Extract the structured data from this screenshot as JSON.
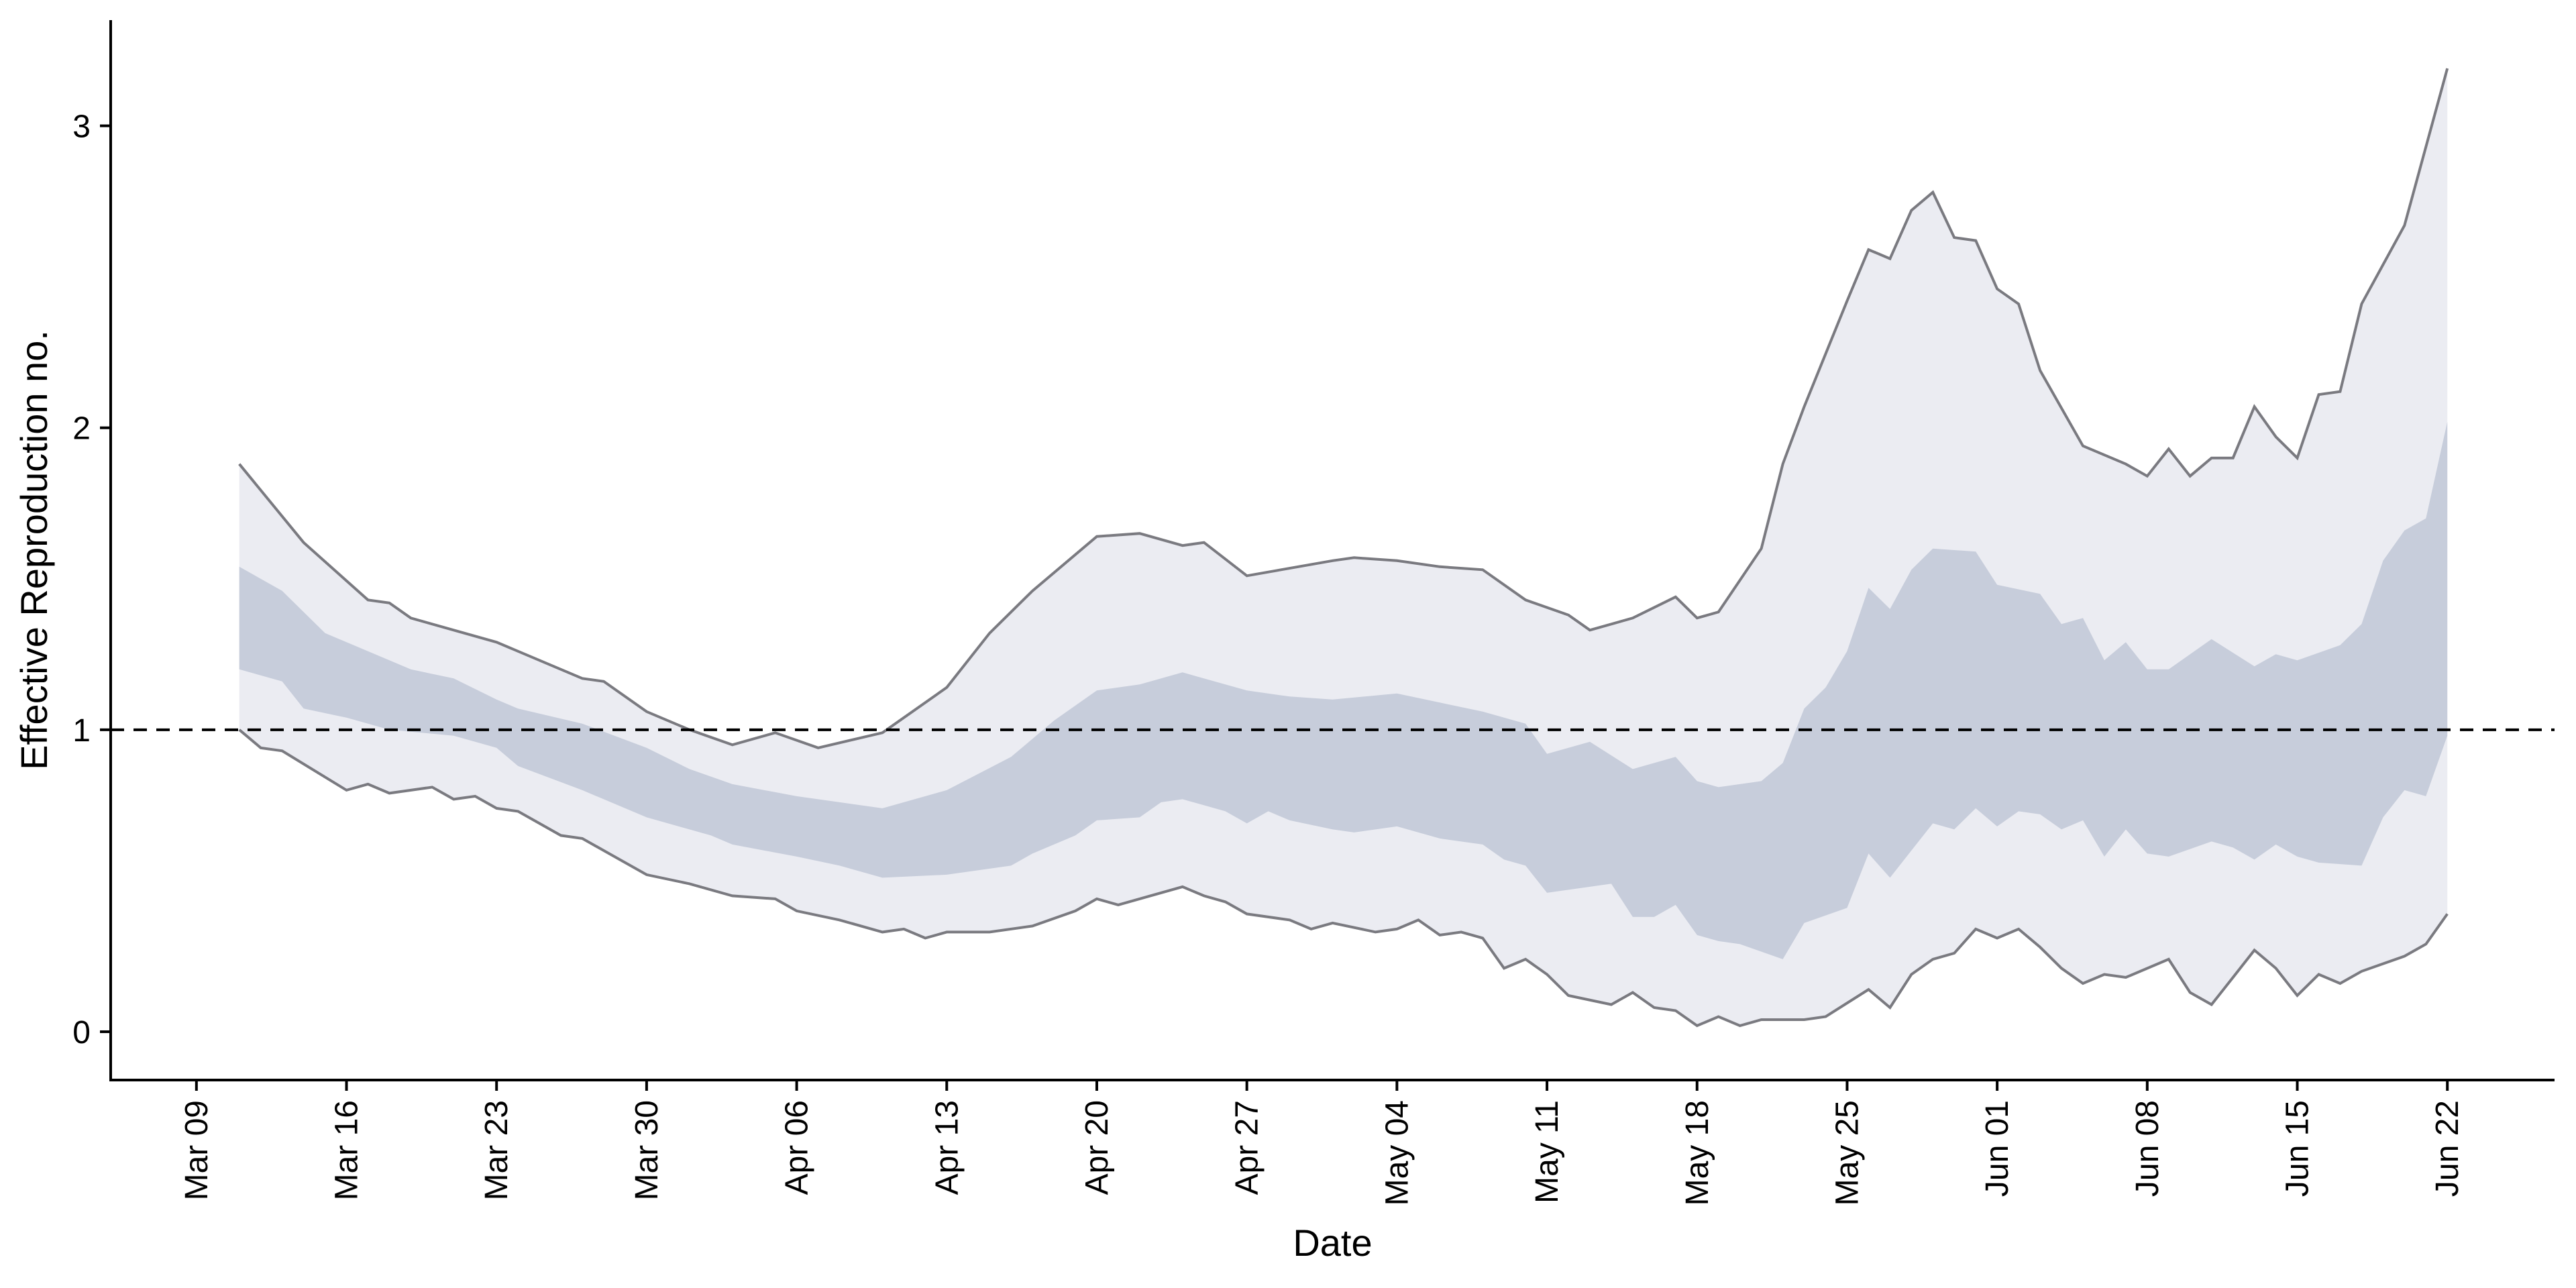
{
  "chart_data": {
    "type": "area",
    "title": "",
    "xlabel": "Date",
    "ylabel": "Effective Reproduction no.",
    "x_start": "2020-03-11",
    "x_end": "2020-06-22",
    "x_ticks": [
      "Mar 09",
      "Mar 16",
      "Mar 23",
      "Mar 30",
      "Apr 06",
      "Apr 13",
      "Apr 20",
      "Apr 27",
      "May 04",
      "May 11",
      "May 18",
      "May 25",
      "Jun 01",
      "Jun 08",
      "Jun 15",
      "Jun 22"
    ],
    "y_ticks": [
      0,
      1,
      2,
      3
    ],
    "ylim": [
      -0.16,
      3.35
    ],
    "xlim": [
      "2020-03-05",
      "2020-06-27"
    ],
    "reference_line": 1,
    "grid": false,
    "colors": {
      "outer_band": "#ebecf2",
      "inner_band": "#c7cddb",
      "bound_line": "#7a7a80"
    },
    "series": [
      {
        "role": "outer_upper",
        "points": [
          [
            "2020-03-11",
            1.88
          ],
          [
            "2020-03-14",
            1.62
          ],
          [
            "2020-03-17",
            1.43
          ],
          [
            "2020-03-18",
            1.42
          ],
          [
            "2020-03-19",
            1.37
          ],
          [
            "2020-03-23",
            1.29
          ],
          [
            "2020-03-27",
            1.17
          ],
          [
            "2020-03-28",
            1.16
          ],
          [
            "2020-03-30",
            1.06
          ],
          [
            "2020-04-01",
            1.0
          ],
          [
            "2020-04-03",
            0.95
          ],
          [
            "2020-04-05",
            0.99
          ],
          [
            "2020-04-07",
            0.94
          ],
          [
            "2020-04-10",
            0.99
          ],
          [
            "2020-04-13",
            1.14
          ],
          [
            "2020-04-15",
            1.32
          ],
          [
            "2020-04-17",
            1.46
          ],
          [
            "2020-04-20",
            1.64
          ],
          [
            "2020-04-22",
            1.65
          ],
          [
            "2020-04-24",
            1.61
          ],
          [
            "2020-04-25",
            1.62
          ],
          [
            "2020-04-27",
            1.51
          ],
          [
            "2020-05-01",
            1.56
          ],
          [
            "2020-05-02",
            1.57
          ],
          [
            "2020-05-04",
            1.56
          ],
          [
            "2020-05-06",
            1.54
          ],
          [
            "2020-05-08",
            1.53
          ],
          [
            "2020-05-10",
            1.43
          ],
          [
            "2020-05-12",
            1.38
          ],
          [
            "2020-05-13",
            1.33
          ],
          [
            "2020-05-15",
            1.37
          ],
          [
            "2020-05-17",
            1.44
          ],
          [
            "2020-05-18",
            1.37
          ],
          [
            "2020-05-19",
            1.39
          ],
          [
            "2020-05-21",
            1.6
          ],
          [
            "2020-05-22",
            1.88
          ],
          [
            "2020-05-23",
            2.07
          ],
          [
            "2020-05-25",
            2.42
          ],
          [
            "2020-05-26",
            2.59
          ],
          [
            "2020-05-27",
            2.56
          ],
          [
            "2020-05-28",
            2.72
          ],
          [
            "2020-05-29",
            2.78
          ],
          [
            "2020-05-30",
            2.63
          ],
          [
            "2020-05-31",
            2.62
          ],
          [
            "2020-06-01",
            2.46
          ],
          [
            "2020-06-02",
            2.41
          ],
          [
            "2020-06-03",
            2.19
          ],
          [
            "2020-06-05",
            1.94
          ],
          [
            "2020-06-07",
            1.88
          ],
          [
            "2020-06-08",
            1.84
          ],
          [
            "2020-06-09",
            1.93
          ],
          [
            "2020-06-10",
            1.84
          ],
          [
            "2020-06-11",
            1.9
          ],
          [
            "2020-06-12",
            1.9
          ],
          [
            "2020-06-13",
            2.07
          ],
          [
            "2020-06-14",
            1.97
          ],
          [
            "2020-06-15",
            1.9
          ],
          [
            "2020-06-16",
            2.11
          ],
          [
            "2020-06-17",
            2.12
          ],
          [
            "2020-06-18",
            2.41
          ],
          [
            "2020-06-20",
            2.67
          ],
          [
            "2020-06-22",
            3.19
          ]
        ]
      },
      {
        "role": "inner_upper",
        "points": [
          [
            "2020-03-11",
            1.54
          ],
          [
            "2020-03-13",
            1.46
          ],
          [
            "2020-03-15",
            1.32
          ],
          [
            "2020-03-17",
            1.26
          ],
          [
            "2020-03-19",
            1.2
          ],
          [
            "2020-03-21",
            1.17
          ],
          [
            "2020-03-23",
            1.1
          ],
          [
            "2020-03-24",
            1.07
          ],
          [
            "2020-03-27",
            1.02
          ],
          [
            "2020-03-30",
            0.94
          ],
          [
            "2020-04-01",
            0.87
          ],
          [
            "2020-04-03",
            0.82
          ],
          [
            "2020-04-06",
            0.78
          ],
          [
            "2020-04-08",
            0.76
          ],
          [
            "2020-04-10",
            0.74
          ],
          [
            "2020-04-13",
            0.8
          ],
          [
            "2020-04-16",
            0.91
          ],
          [
            "2020-04-18",
            1.03
          ],
          [
            "2020-04-20",
            1.13
          ],
          [
            "2020-04-22",
            1.15
          ],
          [
            "2020-04-24",
            1.19
          ],
          [
            "2020-04-27",
            1.13
          ],
          [
            "2020-04-29",
            1.11
          ],
          [
            "2020-05-01",
            1.1
          ],
          [
            "2020-05-04",
            1.12
          ],
          [
            "2020-05-06",
            1.09
          ],
          [
            "2020-05-08",
            1.06
          ],
          [
            "2020-05-10",
            1.02
          ],
          [
            "2020-05-11",
            0.92
          ],
          [
            "2020-05-13",
            0.96
          ],
          [
            "2020-05-15",
            0.87
          ],
          [
            "2020-05-17",
            0.91
          ],
          [
            "2020-05-18",
            0.83
          ],
          [
            "2020-05-19",
            0.81
          ],
          [
            "2020-05-21",
            0.83
          ],
          [
            "2020-05-22",
            0.89
          ],
          [
            "2020-05-23",
            1.07
          ],
          [
            "2020-05-24",
            1.14
          ],
          [
            "2020-05-25",
            1.26
          ],
          [
            "2020-05-26",
            1.47
          ],
          [
            "2020-05-27",
            1.4
          ],
          [
            "2020-05-28",
            1.53
          ],
          [
            "2020-05-29",
            1.6
          ],
          [
            "2020-05-31",
            1.59
          ],
          [
            "2020-06-01",
            1.48
          ],
          [
            "2020-06-03",
            1.45
          ],
          [
            "2020-06-04",
            1.35
          ],
          [
            "2020-06-05",
            1.37
          ],
          [
            "2020-06-06",
            1.23
          ],
          [
            "2020-06-07",
            1.29
          ],
          [
            "2020-06-08",
            1.2
          ],
          [
            "2020-06-09",
            1.2
          ],
          [
            "2020-06-11",
            1.3
          ],
          [
            "2020-06-13",
            1.21
          ],
          [
            "2020-06-14",
            1.25
          ],
          [
            "2020-06-15",
            1.23
          ],
          [
            "2020-06-17",
            1.28
          ],
          [
            "2020-06-18",
            1.35
          ],
          [
            "2020-06-19",
            1.56
          ],
          [
            "2020-06-20",
            1.66
          ],
          [
            "2020-06-21",
            1.7
          ],
          [
            "2020-06-22",
            2.02
          ]
        ]
      },
      {
        "role": "inner_lower",
        "points": [
          [
            "2020-03-11",
            1.2
          ],
          [
            "2020-03-13",
            1.16
          ],
          [
            "2020-03-14",
            1.07
          ],
          [
            "2020-03-16",
            1.04
          ],
          [
            "2020-03-18",
            1.0
          ],
          [
            "2020-03-21",
            0.98
          ],
          [
            "2020-03-23",
            0.94
          ],
          [
            "2020-03-24",
            0.88
          ],
          [
            "2020-03-27",
            0.8
          ],
          [
            "2020-03-30",
            0.71
          ],
          [
            "2020-04-01",
            0.67
          ],
          [
            "2020-04-02",
            0.65
          ],
          [
            "2020-04-03",
            0.62
          ],
          [
            "2020-04-06",
            0.58
          ],
          [
            "2020-04-08",
            0.55
          ],
          [
            "2020-04-10",
            0.51
          ],
          [
            "2020-04-13",
            0.52
          ],
          [
            "2020-04-16",
            0.55
          ],
          [
            "2020-04-17",
            0.59
          ],
          [
            "2020-04-19",
            0.65
          ],
          [
            "2020-04-20",
            0.7
          ],
          [
            "2020-04-22",
            0.71
          ],
          [
            "2020-04-23",
            0.76
          ],
          [
            "2020-04-24",
            0.77
          ],
          [
            "2020-04-26",
            0.73
          ],
          [
            "2020-04-27",
            0.69
          ],
          [
            "2020-04-28",
            0.73
          ],
          [
            "2020-04-29",
            0.7
          ],
          [
            "2020-05-01",
            0.67
          ],
          [
            "2020-05-02",
            0.66
          ],
          [
            "2020-05-04",
            0.68
          ],
          [
            "2020-05-06",
            0.64
          ],
          [
            "2020-05-08",
            0.62
          ],
          [
            "2020-05-09",
            0.57
          ],
          [
            "2020-05-10",
            0.55
          ],
          [
            "2020-05-11",
            0.46
          ],
          [
            "2020-05-13",
            0.48
          ],
          [
            "2020-05-14",
            0.49
          ],
          [
            "2020-05-15",
            0.38
          ],
          [
            "2020-05-16",
            0.38
          ],
          [
            "2020-05-17",
            0.42
          ],
          [
            "2020-05-18",
            0.32
          ],
          [
            "2020-05-19",
            0.3
          ],
          [
            "2020-05-20",
            0.29
          ],
          [
            "2020-05-22",
            0.24
          ],
          [
            "2020-05-23",
            0.36
          ],
          [
            "2020-05-25",
            0.41
          ],
          [
            "2020-05-26",
            0.59
          ],
          [
            "2020-05-27",
            0.51
          ],
          [
            "2020-05-28",
            0.6
          ],
          [
            "2020-05-29",
            0.69
          ],
          [
            "2020-05-30",
            0.67
          ],
          [
            "2020-05-31",
            0.74
          ],
          [
            "2020-06-01",
            0.68
          ],
          [
            "2020-06-02",
            0.73
          ],
          [
            "2020-06-03",
            0.72
          ],
          [
            "2020-06-04",
            0.67
          ],
          [
            "2020-06-05",
            0.7
          ],
          [
            "2020-06-06",
            0.58
          ],
          [
            "2020-06-07",
            0.67
          ],
          [
            "2020-06-08",
            0.59
          ],
          [
            "2020-06-09",
            0.58
          ],
          [
            "2020-06-11",
            0.63
          ],
          [
            "2020-06-12",
            0.61
          ],
          [
            "2020-06-13",
            0.57
          ],
          [
            "2020-06-14",
            0.62
          ],
          [
            "2020-06-15",
            0.58
          ],
          [
            "2020-06-16",
            0.56
          ],
          [
            "2020-06-18",
            0.55
          ],
          [
            "2020-06-19",
            0.71
          ],
          [
            "2020-06-20",
            0.8
          ],
          [
            "2020-06-21",
            0.78
          ],
          [
            "2020-06-22",
            0.98
          ]
        ]
      },
      {
        "role": "outer_lower",
        "points": [
          [
            "2020-03-11",
            1.0
          ],
          [
            "2020-03-12",
            0.94
          ],
          [
            "2020-03-13",
            0.93
          ],
          [
            "2020-03-16",
            0.8
          ],
          [
            "2020-03-17",
            0.82
          ],
          [
            "2020-03-18",
            0.79
          ],
          [
            "2020-03-20",
            0.81
          ],
          [
            "2020-03-21",
            0.77
          ],
          [
            "2020-03-22",
            0.78
          ],
          [
            "2020-03-23",
            0.74
          ],
          [
            "2020-03-24",
            0.73
          ],
          [
            "2020-03-26",
            0.65
          ],
          [
            "2020-03-27",
            0.64
          ],
          [
            "2020-03-30",
            0.52
          ],
          [
            "2020-04-01",
            0.49
          ],
          [
            "2020-04-03",
            0.45
          ],
          [
            "2020-04-05",
            0.44
          ],
          [
            "2020-04-06",
            0.4
          ],
          [
            "2020-04-08",
            0.37
          ],
          [
            "2020-04-10",
            0.33
          ],
          [
            "2020-04-11",
            0.34
          ],
          [
            "2020-04-12",
            0.31
          ],
          [
            "2020-04-13",
            0.33
          ],
          [
            "2020-04-15",
            0.33
          ],
          [
            "2020-04-17",
            0.35
          ],
          [
            "2020-04-19",
            0.4
          ],
          [
            "2020-04-20",
            0.44
          ],
          [
            "2020-04-21",
            0.42
          ],
          [
            "2020-04-24",
            0.48
          ],
          [
            "2020-04-25",
            0.45
          ],
          [
            "2020-04-26",
            0.43
          ],
          [
            "2020-04-27",
            0.39
          ],
          [
            "2020-04-29",
            0.37
          ],
          [
            "2020-04-30",
            0.34
          ],
          [
            "2020-05-01",
            0.36
          ],
          [
            "2020-05-03",
            0.33
          ],
          [
            "2020-05-04",
            0.34
          ],
          [
            "2020-05-05",
            0.37
          ],
          [
            "2020-05-06",
            0.32
          ],
          [
            "2020-05-07",
            0.33
          ],
          [
            "2020-05-08",
            0.31
          ],
          [
            "2020-05-09",
            0.21
          ],
          [
            "2020-05-10",
            0.24
          ],
          [
            "2020-05-11",
            0.19
          ],
          [
            "2020-05-12",
            0.12
          ],
          [
            "2020-05-14",
            0.09
          ],
          [
            "2020-05-15",
            0.13
          ],
          [
            "2020-05-16",
            0.08
          ],
          [
            "2020-05-17",
            0.07
          ],
          [
            "2020-05-18",
            0.02
          ],
          [
            "2020-05-19",
            0.05
          ],
          [
            "2020-05-20",
            0.02
          ],
          [
            "2020-05-21",
            0.04
          ],
          [
            "2020-05-23",
            0.04
          ],
          [
            "2020-05-24",
            0.05
          ],
          [
            "2020-05-26",
            0.14
          ],
          [
            "2020-05-27",
            0.08
          ],
          [
            "2020-05-28",
            0.19
          ],
          [
            "2020-05-29",
            0.24
          ],
          [
            "2020-05-30",
            0.26
          ],
          [
            "2020-05-31",
            0.34
          ],
          [
            "2020-06-01",
            0.31
          ],
          [
            "2020-06-02",
            0.34
          ],
          [
            "2020-06-03",
            0.28
          ],
          [
            "2020-06-04",
            0.21
          ],
          [
            "2020-06-05",
            0.16
          ],
          [
            "2020-06-06",
            0.19
          ],
          [
            "2020-06-07",
            0.18
          ],
          [
            "2020-06-09",
            0.24
          ],
          [
            "2020-06-10",
            0.13
          ],
          [
            "2020-06-11",
            0.09
          ],
          [
            "2020-06-12",
            0.18
          ],
          [
            "2020-06-13",
            0.27
          ],
          [
            "2020-06-14",
            0.21
          ],
          [
            "2020-06-15",
            0.12
          ],
          [
            "2020-06-16",
            0.19
          ],
          [
            "2020-06-17",
            0.16
          ],
          [
            "2020-06-18",
            0.2
          ],
          [
            "2020-06-20",
            0.25
          ],
          [
            "2020-06-21",
            0.29
          ],
          [
            "2020-06-22",
            0.39
          ]
        ]
      }
    ]
  }
}
